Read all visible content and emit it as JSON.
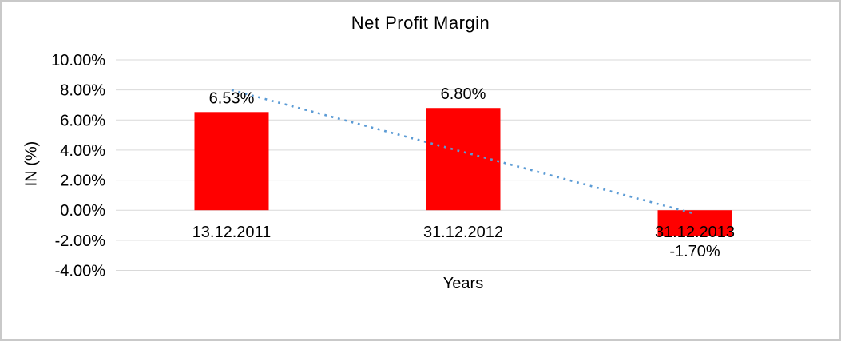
{
  "chart_data": {
    "type": "bar",
    "title": "Net Profit Margin",
    "xlabel": "Years",
    "ylabel": "IN (%)",
    "categories": [
      "13.12.2011",
      "31.12.2012",
      "31.12.2013"
    ],
    "values": [
      6.53,
      6.8,
      -1.7
    ],
    "data_labels": [
      "6.53%",
      "6.80%",
      "-1.70%"
    ],
    "ytick_values": [
      10,
      8,
      6,
      4,
      2,
      0,
      -2,
      -4
    ],
    "ytick_labels": [
      "10.00%",
      "8.00%",
      "6.00%",
      "4.00%",
      "2.00%",
      "0.00%",
      "-2.00%",
      "-4.00%"
    ],
    "ylim": [
      -4,
      10
    ],
    "grid": true,
    "legend": "none",
    "bar_color": "#FF0000",
    "gridline_color": "#D9D9D9",
    "text_color": "#000000",
    "trendline": {
      "type": "linear",
      "style": "dotted",
      "color": "#5B9BD5"
    }
  }
}
